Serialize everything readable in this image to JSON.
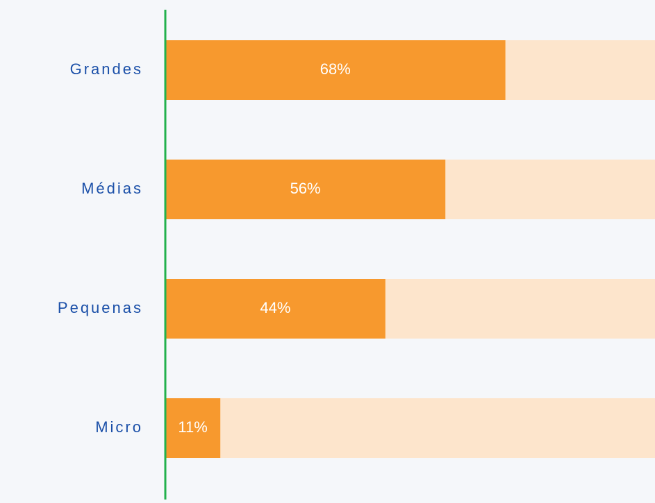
{
  "chart_data": {
    "type": "bar",
    "orientation": "horizontal",
    "categories": [
      "Grandes",
      "Médias",
      "Pequenas",
      "Micro"
    ],
    "values": [
      68,
      56,
      44,
      11
    ],
    "value_labels": [
      "68%",
      "56%",
      "44%",
      "11%"
    ],
    "color": "#f7992e",
    "track_color": "#fde5cc",
    "axis_color": "#22b14c",
    "xlim": [
      0,
      100
    ]
  }
}
